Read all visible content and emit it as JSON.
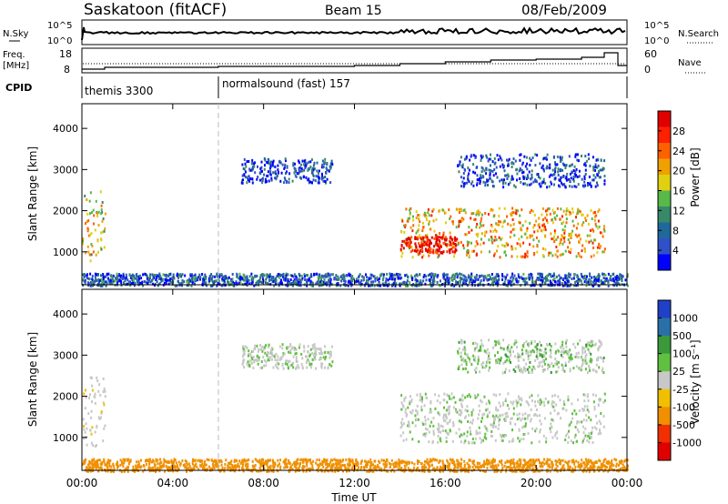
{
  "header": {
    "station": "Saskatoon (fitACF)",
    "beam": "Beam 15",
    "date": "08/Feb/2009"
  },
  "nsky_panel": {
    "left_label": "N.Sky",
    "right_label": "N.Search",
    "left_ticks": [
      "10^5",
      "10^0"
    ],
    "right_ticks": [
      "10^5",
      "10^0"
    ]
  },
  "freq_panel": {
    "left_label_line1": "Freq.",
    "left_label_line2": "[MHz]",
    "right_label": "Nave",
    "left_ticks": [
      "18",
      "8"
    ],
    "right_ticks": [
      "60",
      "0"
    ]
  },
  "cpid_panel": {
    "label": "CPID",
    "segments": [
      {
        "start_hour": 0.0,
        "text": "themis 3300"
      },
      {
        "start_hour": 6.0,
        "text": "normalsound (fast) 157"
      }
    ]
  },
  "colors": {
    "power": [
      "#0000ff",
      "#3050c8",
      "#20689a",
      "#38886a",
      "#58b848",
      "#e0d010",
      "#f0a000",
      "#ff6000",
      "#ff2000",
      "#e00000"
    ],
    "velocity": {
      "1000": "#2040c8",
      "500": "#2a70a8",
      "100": "#3a9a3a",
      "25": "#60c040",
      "-25": "#c8c8c8",
      "-100": "#f0c000",
      "-500": "#f09000",
      "-1000": "#f03000",
      "min": "#e00000"
    }
  },
  "chart_data": [
    {
      "type": "heatmap",
      "name": "power",
      "ylabel": "Slant Range [km]",
      "xlim_hours": [
        0,
        24
      ],
      "ylim": [
        200,
        4600
      ],
      "y_ticks": [
        "1000",
        "2000",
        "3000",
        "4000"
      ],
      "colorbar_label": "Power [dB]",
      "colorbar_ticks": [
        "4",
        "8",
        "12",
        "16",
        "20",
        "24",
        "28"
      ],
      "regions": [
        {
          "t0": 0.0,
          "t1": 1.0,
          "r0": 800,
          "r1": 2500,
          "level": 0.55
        },
        {
          "t0": 7.0,
          "t1": 11.0,
          "r0": 2700,
          "r1": 3300,
          "level": 0.15
        },
        {
          "t0": 14.0,
          "t1": 23.0,
          "r0": 900,
          "r1": 2100,
          "level": 0.65
        },
        {
          "t0": 14.0,
          "t1": 16.5,
          "r0": 1000,
          "r1": 1400,
          "level": 0.95
        },
        {
          "t0": 16.5,
          "t1": 23.0,
          "r0": 2600,
          "r1": 3400,
          "level": 0.15
        },
        {
          "t0": 0.0,
          "t1": 24.0,
          "r0": 200,
          "r1": 500,
          "level": 0.2
        }
      ]
    },
    {
      "type": "heatmap",
      "name": "velocity",
      "ylabel": "Slant Range [km]",
      "xlabel": "Time UT",
      "xlim_hours": [
        0,
        24
      ],
      "ylim": [
        200,
        4600
      ],
      "y_ticks": [
        "1000",
        "2000",
        "3000",
        "4000"
      ],
      "x_ticks": [
        "00:00",
        "04:00",
        "08:00",
        "12:00",
        "16:00",
        "20:00",
        "00:00"
      ],
      "colorbar_label": "Velocity [m s⁻¹]",
      "colorbar_ticks": [
        "1000",
        "500",
        "100",
        "25",
        "-25",
        "-100",
        "-500",
        "-1000"
      ],
      "regions": [
        {
          "t0": 0.0,
          "t1": 1.0,
          "r0": 800,
          "r1": 2500,
          "v": -10
        },
        {
          "t0": 7.0,
          "t1": 11.0,
          "r0": 2700,
          "r1": 3300,
          "v": 0
        },
        {
          "t0": 14.0,
          "t1": 23.0,
          "r0": 900,
          "r1": 2100,
          "v": 0
        },
        {
          "t0": 16.5,
          "t1": 23.0,
          "r0": 2600,
          "r1": 3400,
          "v": 10
        },
        {
          "t0": 0.0,
          "t1": 24.0,
          "r0": 200,
          "r1": 500,
          "v": -120
        }
      ]
    }
  ]
}
